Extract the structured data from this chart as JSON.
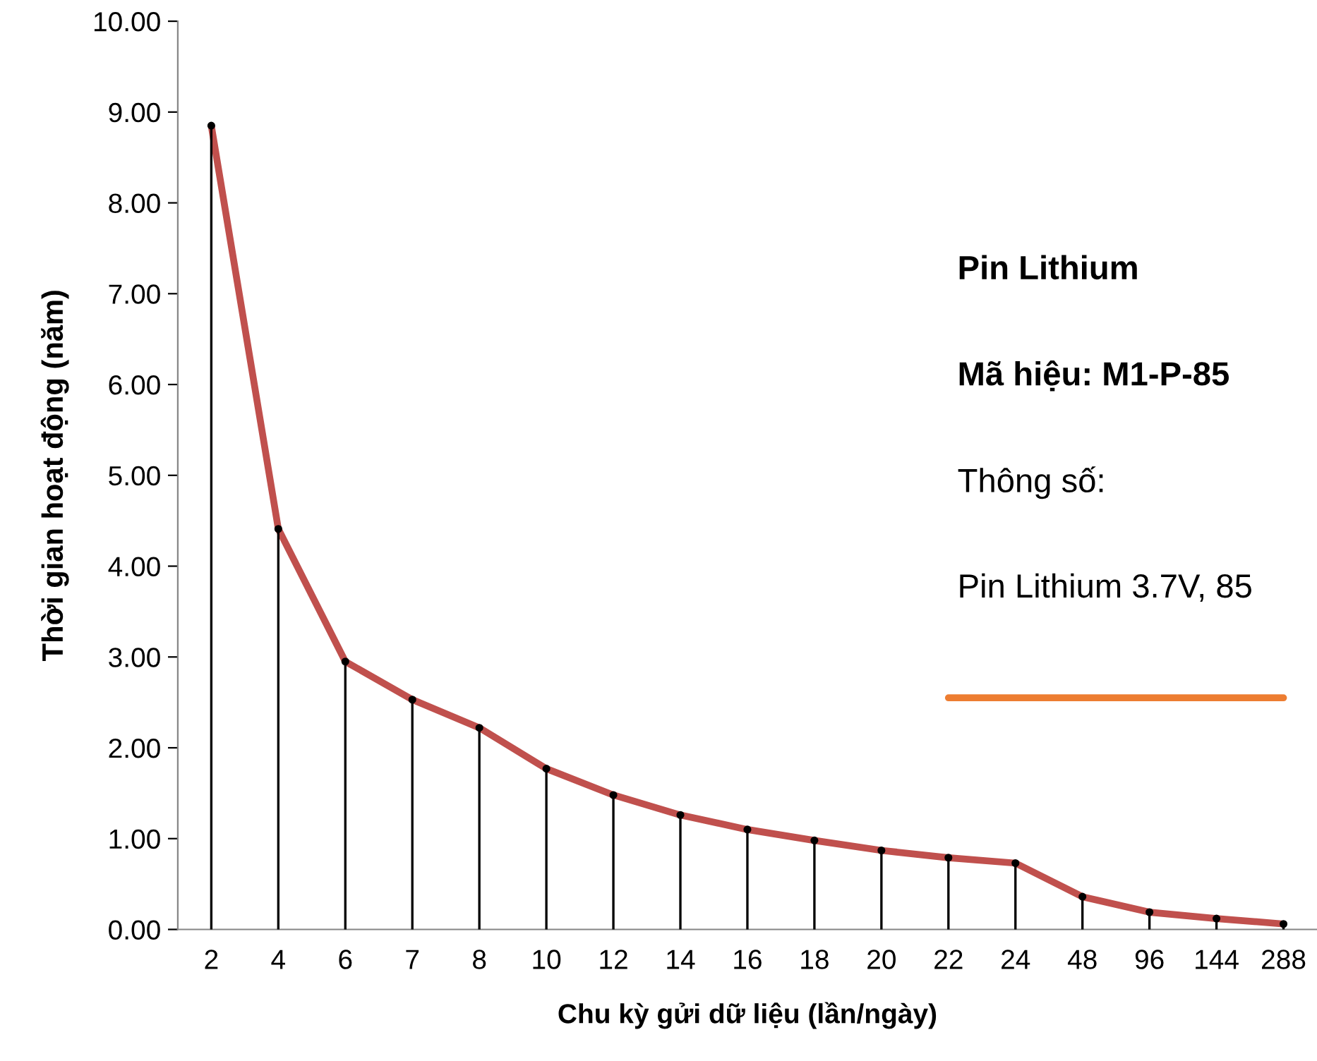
{
  "chart_data": {
    "type": "line",
    "xlabel": "Chu kỳ gửi dữ liệu (lần/ngày)",
    "ylabel": "Thời gian hoạt động (năm)",
    "categories": [
      "2",
      "4",
      "6",
      "7",
      "8",
      "10",
      "12",
      "14",
      "16",
      "18",
      "20",
      "22",
      "24",
      "48",
      "96",
      "144",
      "288"
    ],
    "series": [
      {
        "type": "lollipop",
        "marker": "circle",
        "color": "#000000",
        "values": [
          8.85,
          4.41,
          2.95,
          2.53,
          2.22,
          1.77,
          1.48,
          1.26,
          1.1,
          0.98,
          0.87,
          0.79,
          0.73,
          0.36,
          0.19,
          0.12,
          0.06
        ]
      },
      {
        "color": "#c0504d",
        "values": [
          8.85,
          4.41,
          2.95,
          2.53,
          2.22,
          1.77,
          1.48,
          1.26,
          1.1,
          0.98,
          0.87,
          0.79,
          0.73,
          0.36,
          0.19,
          0.12,
          0.06
        ]
      },
      {
        "type": "line",
        "color": "#ed7d31",
        "values": [
          null,
          null,
          null,
          null,
          null,
          null,
          null,
          null,
          null,
          null,
          null,
          2.55,
          2.55,
          2.55,
          2.55,
          2.55,
          2.55
        ]
      }
    ],
    "ylim": [
      0,
      10
    ],
    "yticks": [
      {
        "value": 0,
        "label": "0.00"
      },
      {
        "value": 1,
        "label": "1.00"
      },
      {
        "value": 2,
        "label": "2.00"
      },
      {
        "value": 3,
        "label": "3.00"
      },
      {
        "value": 4,
        "label": "4.00"
      },
      {
        "value": 5,
        "label": "5.00"
      },
      {
        "value": 6,
        "label": "6.00"
      },
      {
        "value": 7,
        "label": "7.00"
      },
      {
        "value": 8,
        "label": "8.00"
      },
      {
        "value": 9,
        "label": "9.00"
      },
      {
        "value": 10,
        "label": "10.00"
      }
    ],
    "annotations": [
      "Pin Lithium",
      "Mã hiệu: M1-P-85",
      "Thông số:",
      "Pin Lithium 3.7V, 85"
    ],
    "grid": false,
    "legend": false,
    "marker": "none",
    "line_style": "solid"
  }
}
